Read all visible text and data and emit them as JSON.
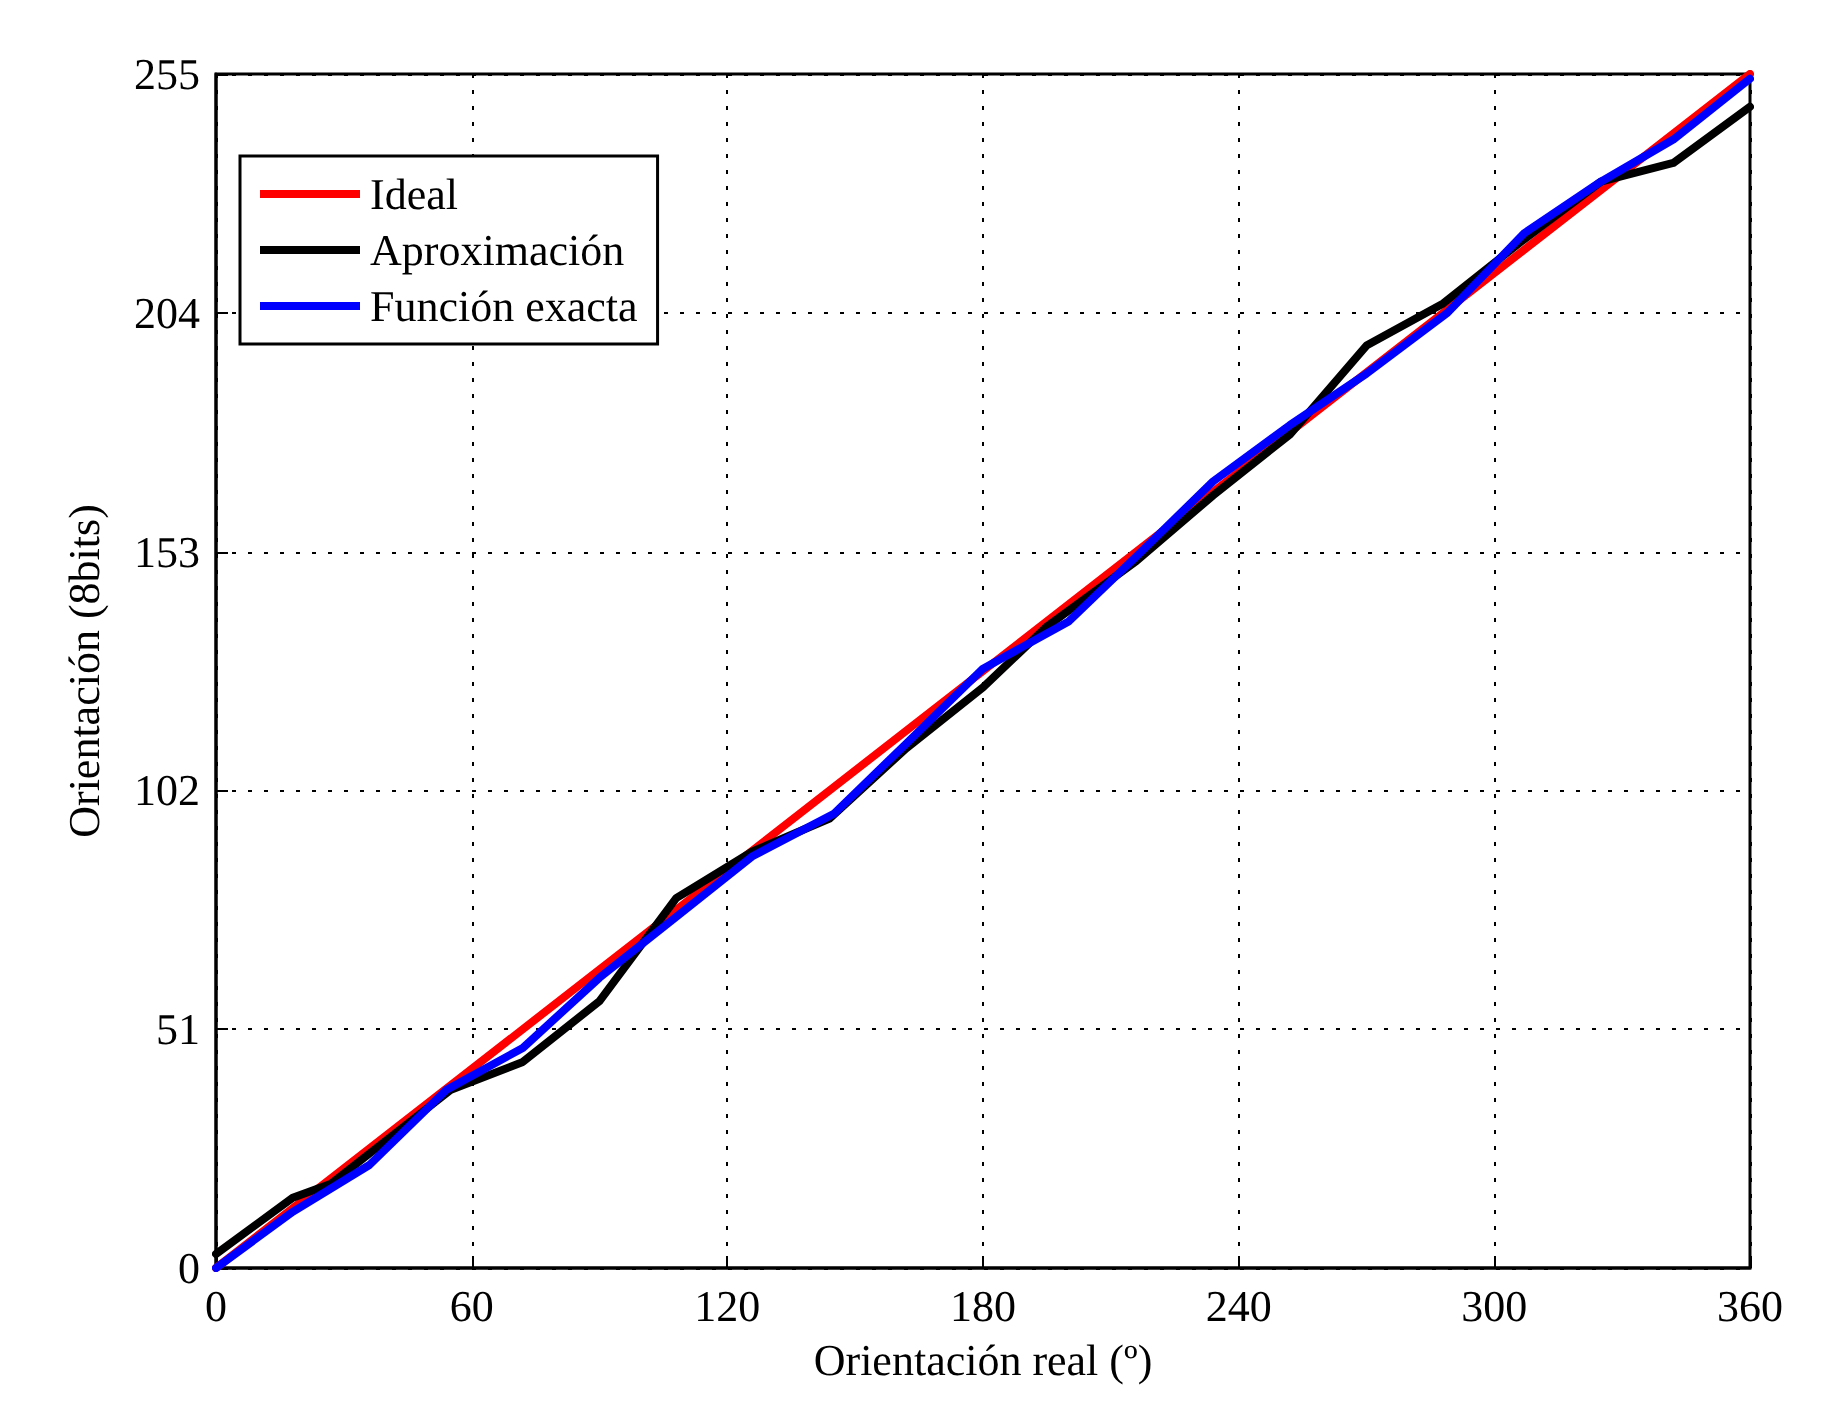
{
  "chart_data": {
    "type": "line",
    "xlabel": "Orientación real (º)",
    "ylabel": "Orientación (8bits)",
    "xlim": [
      0,
      360
    ],
    "ylim": [
      0,
      255
    ],
    "xticks": [
      0,
      60,
      120,
      180,
      240,
      300,
      360
    ],
    "yticks": [
      0,
      51,
      102,
      153,
      204,
      255
    ],
    "grid": true,
    "legend": "top left",
    "marker": "none",
    "line_style": "solid",
    "series": [
      {
        "name": "Ideal",
        "color": "#ff0000",
        "x": [
          0,
          360
        ],
        "values": [
          0,
          255
        ]
      },
      {
        "name": "Aproximación",
        "color": "#000000",
        "x": [
          0,
          18,
          27,
          55,
          72,
          90,
          108,
          126,
          144,
          162,
          180,
          195,
          216,
          234,
          252,
          270,
          288,
          306,
          325,
          342,
          360
        ],
        "values": [
          3,
          15,
          18,
          38,
          44,
          57,
          79,
          89,
          96,
          111,
          124,
          137,
          151,
          165,
          178,
          197,
          206,
          219,
          232,
          236,
          248
        ]
      },
      {
        "name": "Función exacta",
        "color": "#0000ff",
        "x": [
          0,
          18,
          36,
          54,
          72,
          90,
          108,
          126,
          145,
          162,
          180,
          200,
          216,
          234,
          252,
          270,
          289,
          307,
          325,
          342,
          360
        ],
        "values": [
          0,
          12,
          22,
          38,
          47,
          62,
          75,
          88,
          97,
          112,
          128,
          138,
          152,
          168,
          180,
          191,
          204,
          221,
          232,
          241,
          254
        ]
      }
    ]
  }
}
